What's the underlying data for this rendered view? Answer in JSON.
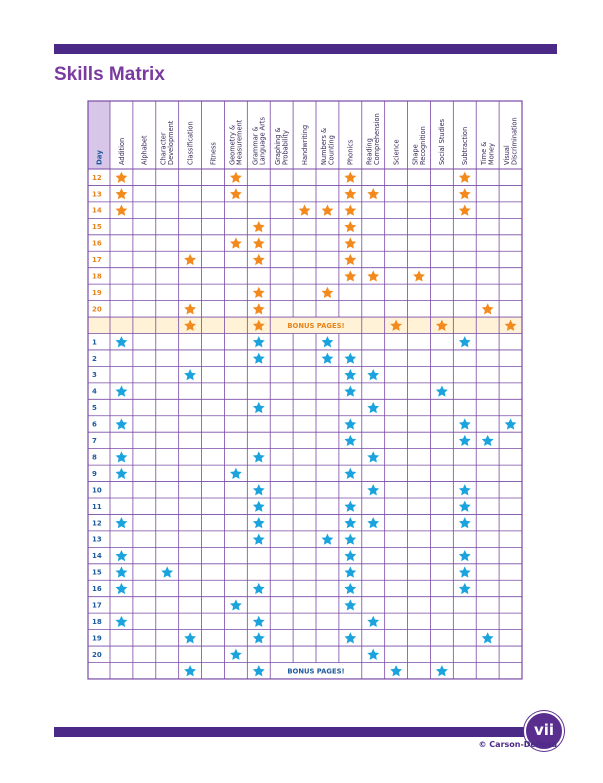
{
  "page": {
    "title": "Skills Matrix",
    "page_number": "vii",
    "copyright": "© Carson-Dellosa"
  },
  "colors": {
    "frame": "#7a4aa6",
    "header_fill": "#d8c6e8",
    "orange_row_fill": "#fff2d6",
    "orange_star": "#f28a1e",
    "blue_star": "#1aa3dc",
    "orange_day": "#e8841c",
    "blue_day": "#1e5a9c"
  },
  "matrix": {
    "day_header": "Day",
    "columns": [
      "Addition",
      "Alphabet",
      "Character Development",
      "Classification",
      "Fitness",
      "Geometry & Measurement",
      "Grammar & Language Arts",
      "Graphing & Probability",
      "Handwriting",
      "Numbers & Counting",
      "Phonics",
      "Reading Comprehension",
      "Science",
      "Shape Recognition",
      "Social Studies",
      "Subtraction",
      "Time & Money",
      "Visual Discrimination"
    ],
    "sections": [
      {
        "star": "orange-star",
        "rows": [
          {
            "day": "12",
            "stars": [
              0,
              5,
              10,
              15
            ]
          },
          {
            "day": "13",
            "stars": [
              0,
              5,
              10,
              11,
              15
            ]
          },
          {
            "day": "14",
            "stars": [
              0,
              8,
              9,
              10,
              15
            ]
          },
          {
            "day": "15",
            "stars": [
              6,
              10
            ]
          },
          {
            "day": "16",
            "stars": [
              5,
              6,
              10
            ]
          },
          {
            "day": "17",
            "stars": [
              3,
              6,
              10
            ]
          },
          {
            "day": "18",
            "stars": [
              10,
              11,
              13
            ]
          },
          {
            "day": "19",
            "stars": [
              6,
              9
            ]
          },
          {
            "day": "20",
            "stars": [
              3,
              6,
              16
            ]
          },
          {
            "day": "",
            "bonus": "BONUS PAGES!",
            "stars": [
              3,
              6,
              12,
              14,
              17
            ]
          }
        ]
      },
      {
        "star": "blue-star",
        "rows": [
          {
            "day": "1",
            "stars": [
              0,
              6,
              9,
              15
            ]
          },
          {
            "day": "2",
            "stars": [
              6,
              9,
              10
            ]
          },
          {
            "day": "3",
            "stars": [
              3,
              10,
              11
            ]
          },
          {
            "day": "4",
            "stars": [
              0,
              10,
              14
            ]
          },
          {
            "day": "5",
            "stars": [
              6,
              11
            ]
          },
          {
            "day": "6",
            "stars": [
              0,
              10,
              15,
              17
            ]
          },
          {
            "day": "7",
            "stars": [
              10,
              15,
              16
            ]
          },
          {
            "day": "8",
            "stars": [
              0,
              6,
              11
            ]
          },
          {
            "day": "9",
            "stars": [
              0,
              5,
              10
            ]
          },
          {
            "day": "10",
            "stars": [
              6,
              11,
              15
            ]
          },
          {
            "day": "11",
            "stars": [
              6,
              10,
              15
            ]
          },
          {
            "day": "12",
            "stars": [
              0,
              6,
              10,
              11,
              15
            ]
          },
          {
            "day": "13",
            "stars": [
              6,
              9,
              10
            ]
          },
          {
            "day": "14",
            "stars": [
              0,
              10,
              15
            ]
          },
          {
            "day": "15",
            "stars": [
              0,
              2,
              10,
              15
            ]
          },
          {
            "day": "16",
            "stars": [
              0,
              6,
              10,
              15
            ]
          },
          {
            "day": "17",
            "stars": [
              5,
              10
            ]
          },
          {
            "day": "18",
            "stars": [
              0,
              6,
              11
            ]
          },
          {
            "day": "19",
            "stars": [
              3,
              6,
              10,
              16
            ]
          },
          {
            "day": "20",
            "stars": [
              5,
              11
            ]
          },
          {
            "day": "",
            "bonus": "BONUS PAGES!",
            "stars": [
              3,
              6,
              12,
              14
            ]
          }
        ]
      }
    ]
  }
}
